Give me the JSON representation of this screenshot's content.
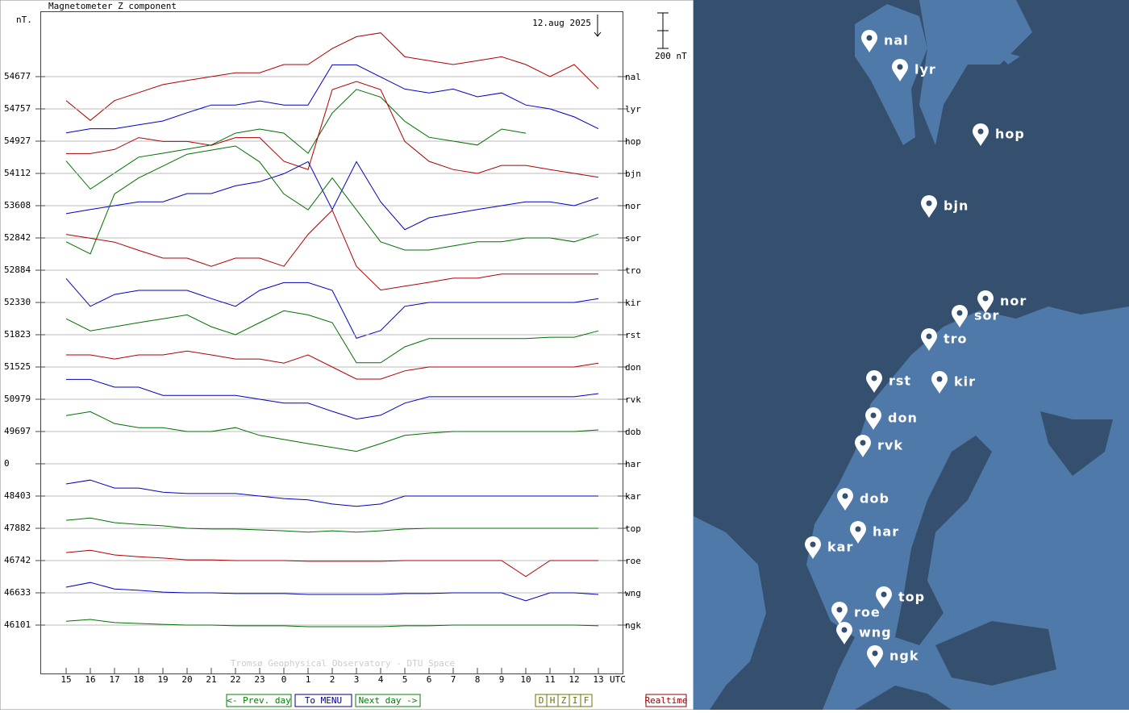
{
  "chart": {
    "title": "Magnetometer Z component",
    "unit": "nT.",
    "date": "12.aug 2025",
    "scale_bar": {
      "value": 200,
      "label": "200 nT"
    },
    "x_unit": "UTC",
    "watermark": "Tromsø Geophysical Observatory - DTU Space",
    "hours": [
      "15",
      "16",
      "17",
      "18",
      "19",
      "20",
      "21",
      "22",
      "23",
      "0",
      "1",
      "2",
      "3",
      "4",
      "5",
      "6",
      "7",
      "8",
      "9",
      "10",
      "11",
      "12",
      "13"
    ],
    "stations": [
      {
        "code": "nal",
        "baseline": "54677",
        "color": "#b00000",
        "values": [
          -135,
          -247,
          -135,
          -90,
          -45,
          -22,
          0,
          22,
          22,
          68,
          68,
          158,
          225,
          247,
          112,
          90,
          68,
          90,
          112,
          68,
          0,
          68,
          -68
        ]
      },
      {
        "code": "lyr",
        "baseline": "54757",
        "color": "#0000c0",
        "values": [
          -135,
          -112,
          -112,
          -90,
          -68,
          -22,
          22,
          22,
          45,
          22,
          22,
          248,
          248,
          180,
          112,
          90,
          112,
          68,
          90,
          22,
          0,
          -45,
          -112
        ]
      },
      {
        "code": "hop",
        "baseline": "54927",
        "color": "#007000",
        "values": [
          -112,
          -270,
          -180,
          -90,
          -68,
          -45,
          -22,
          45,
          68,
          45,
          -68,
          158,
          292,
          248,
          112,
          22,
          0,
          -22,
          68,
          45,
          null,
          null,
          null
        ]
      },
      {
        "code": "bjn",
        "baseline": "54112",
        "color": "#b00000",
        "values": [
          112,
          112,
          135,
          202,
          180,
          180,
          158,
          202,
          202,
          68,
          22,
          472,
          518,
          472,
          180,
          68,
          22,
          0,
          45,
          45,
          22,
          0,
          -22
        ]
      },
      {
        "code": "nor",
        "baseline": "53608",
        "color": "#0000c0",
        "values": [
          -45,
          -22,
          0,
          22,
          22,
          68,
          68,
          112,
          135,
          180,
          248,
          -22,
          248,
          22,
          -135,
          -68,
          -45,
          -22,
          0,
          22,
          22,
          0,
          45
        ]
      },
      {
        "code": "sor",
        "baseline": "52842",
        "color": "#007000",
        "values": [
          -22,
          -90,
          248,
          338,
          405,
          472,
          495,
          518,
          428,
          248,
          158,
          338,
          158,
          -22,
          -68,
          -68,
          -45,
          -22,
          -22,
          0,
          0,
          -22,
          22
        ]
      },
      {
        "code": "tro",
        "baseline": "52884",
        "color": "#b00000",
        "values": [
          202,
          180,
          158,
          112,
          68,
          68,
          22,
          68,
          68,
          22,
          202,
          338,
          22,
          -112,
          -90,
          -68,
          -45,
          -45,
          -22,
          -22,
          -22,
          -22,
          -22
        ]
      },
      {
        "code": "kir",
        "baseline": "52330",
        "color": "#0000c0",
        "values": [
          135,
          -22,
          45,
          68,
          68,
          68,
          22,
          -22,
          68,
          112,
          112,
          68,
          -202,
          -158,
          -22,
          0,
          0,
          0,
          0,
          0,
          0,
          0,
          22
        ]
      },
      {
        "code": "rst",
        "baseline": "51823",
        "color": "#007000",
        "values": [
          90,
          22,
          45,
          68,
          90,
          112,
          45,
          0,
          68,
          135,
          112,
          68,
          -158,
          -158,
          -68,
          -22,
          -22,
          -22,
          -22,
          -22,
          -14,
          -14,
          22
        ]
      },
      {
        "code": "don",
        "baseline": "51525",
        "color": "#b00000",
        "values": [
          68,
          68,
          45,
          68,
          68,
          90,
          68,
          45,
          45,
          22,
          68,
          0,
          -68,
          -68,
          -22,
          0,
          0,
          0,
          0,
          0,
          0,
          0,
          22
        ]
      },
      {
        "code": "rvk",
        "baseline": "50979",
        "color": "#0000c0",
        "values": [
          112,
          112,
          68,
          68,
          22,
          22,
          22,
          22,
          0,
          -22,
          -22,
          -68,
          -112,
          -90,
          -22,
          14,
          14,
          14,
          14,
          14,
          14,
          14,
          32
        ]
      },
      {
        "code": "dob",
        "baseline": "49697",
        "color": "#007000",
        "values": [
          90,
          112,
          45,
          22,
          22,
          0,
          0,
          22,
          -22,
          -45,
          -68,
          -90,
          -112,
          -68,
          -22,
          -9,
          0,
          0,
          0,
          0,
          0,
          0,
          9
        ]
      },
      {
        "code": "har",
        "baseline": "0",
        "color": "#007000",
        "values": [
          null,
          null,
          null,
          null,
          null,
          null,
          null,
          null,
          null,
          null,
          null,
          null,
          null,
          null,
          null,
          null,
          null,
          null,
          null,
          null,
          null,
          null,
          null
        ]
      },
      {
        "code": "kar",
        "baseline": "48403",
        "color": "#0000c0",
        "values": [
          68,
          90,
          45,
          45,
          22,
          14,
          14,
          14,
          0,
          -14,
          -22,
          -45,
          -58,
          -45,
          0,
          0,
          0,
          0,
          0,
          0,
          0,
          0,
          0
        ]
      },
      {
        "code": "top",
        "baseline": "47882",
        "color": "#007000",
        "values": [
          45,
          58,
          32,
          22,
          14,
          0,
          -4,
          -4,
          -9,
          -14,
          -22,
          -14,
          -22,
          -14,
          -4,
          0,
          0,
          0,
          0,
          0,
          0,
          0,
          0
        ]
      },
      {
        "code": "roe",
        "baseline": "46742",
        "color": "#b00000",
        "values": [
          45,
          58,
          32,
          22,
          14,
          4,
          4,
          0,
          0,
          0,
          -4,
          -4,
          -4,
          -4,
          0,
          0,
          0,
          0,
          0,
          -90,
          0,
          0,
          0
        ]
      },
      {
        "code": "wng",
        "baseline": "46633",
        "color": "#0000c0",
        "values": [
          32,
          58,
          22,
          14,
          4,
          0,
          0,
          -4,
          -4,
          -4,
          -9,
          -9,
          -9,
          -9,
          -4,
          -4,
          0,
          0,
          0,
          -45,
          0,
          0,
          -9
        ]
      },
      {
        "code": "ngk",
        "baseline": "46101",
        "color": "#007000",
        "values": [
          22,
          32,
          14,
          9,
          4,
          0,
          0,
          -4,
          -4,
          -4,
          -9,
          -9,
          -9,
          -9,
          -4,
          -4,
          0,
          0,
          0,
          0,
          0,
          0,
          -4
        ]
      }
    ]
  },
  "buttons": {
    "prev": "<- Prev. day",
    "menu": "To MENU",
    "next": "Next day ->",
    "components": [
      "D",
      "H",
      "Z",
      "I",
      "F"
    ],
    "realtime": "Realtime"
  },
  "map": {
    "markers": [
      {
        "label": "nal"
      },
      {
        "label": "lyr"
      },
      {
        "label": "hop"
      },
      {
        "label": "bjn"
      },
      {
        "label": "nor"
      },
      {
        "label": "sor"
      },
      {
        "label": "tro"
      },
      {
        "label": "rst"
      },
      {
        "label": "kir"
      },
      {
        "label": "don"
      },
      {
        "label": "rvk"
      },
      {
        "label": "dob"
      },
      {
        "label": "har"
      },
      {
        "label": "kar"
      },
      {
        "label": "top"
      },
      {
        "label": "roe"
      },
      {
        "label": "wng"
      },
      {
        "label": "ngk"
      }
    ]
  }
}
